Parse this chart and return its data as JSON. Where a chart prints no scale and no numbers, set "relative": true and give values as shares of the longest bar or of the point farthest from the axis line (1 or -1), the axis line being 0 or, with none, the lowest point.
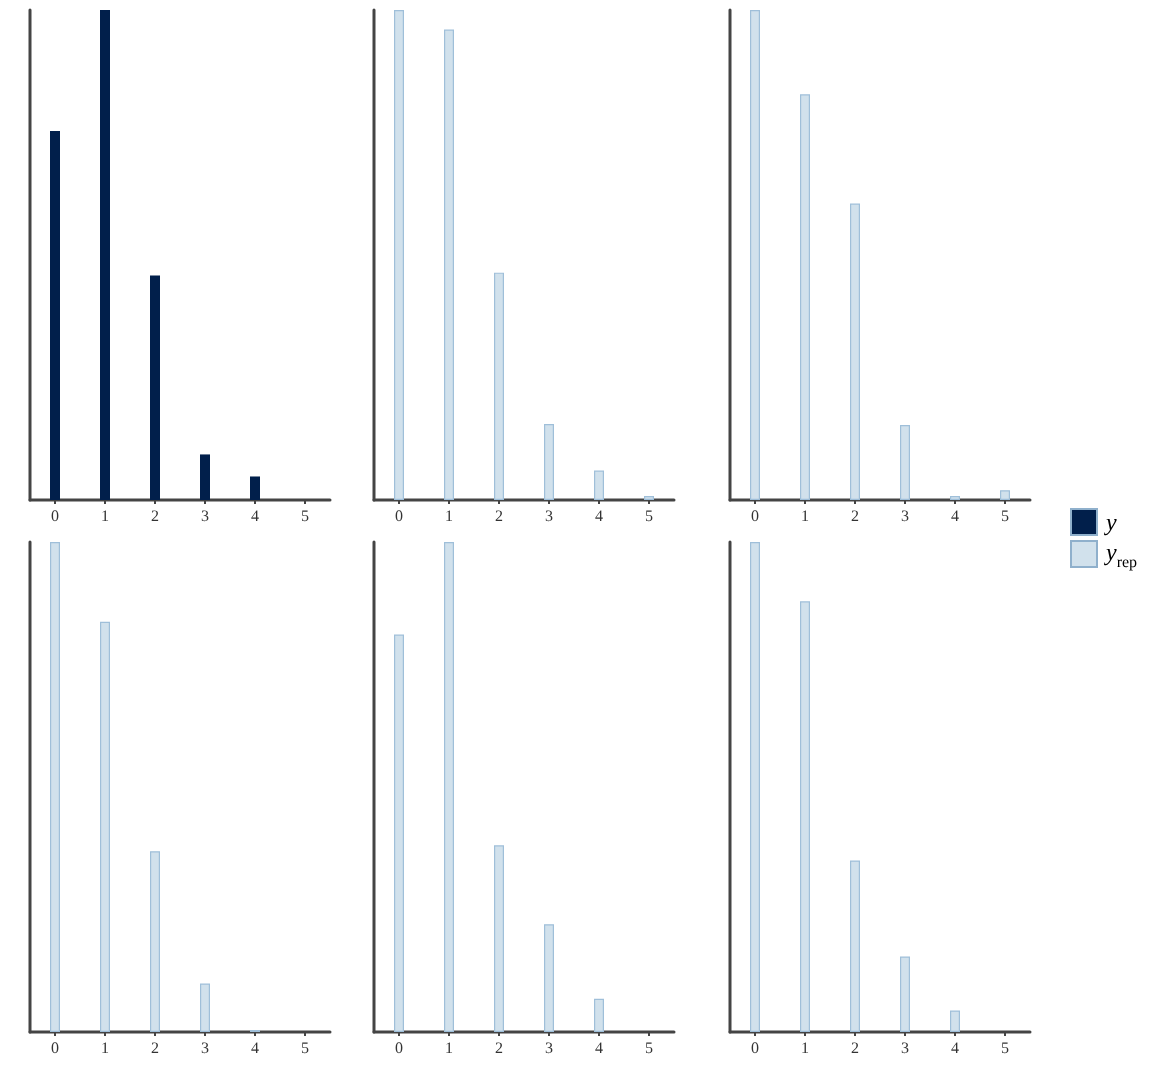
{
  "chart_data": [
    {
      "type": "bar",
      "relative": true,
      "categories": [
        "0",
        "1",
        "2",
        "3",
        "4",
        "5"
      ],
      "legend": "right",
      "grid": false,
      "series": [
        {
          "name": "y",
          "color": "#011f4b",
          "values": [
            0.753,
            1,
            0.458,
            0.093,
            0.048,
            null
          ]
        }
      ]
    },
    {
      "type": "bar",
      "relative": true,
      "categories": [
        "0",
        "1",
        "2",
        "3",
        "4",
        "5"
      ],
      "legend": "right",
      "grid": false,
      "series": [
        {
          "name": "y$_{rep}$",
          "color": "#d1e1ec",
          "values": [
            1,
            0.96,
            0.464,
            0.155,
            0.06,
            0.008
          ]
        }
      ]
    },
    {
      "type": "bar",
      "relative": true,
      "categories": [
        "0",
        "1",
        "2",
        "3",
        "4",
        "5"
      ],
      "legend": "right",
      "grid": false,
      "series": [
        {
          "name": "y$_{rep}$",
          "color": "#d1e1ec",
          "values": [
            1,
            0.828,
            0.605,
            0.153,
            0.008,
            0.02
          ]
        }
      ]
    },
    {
      "type": "bar",
      "relative": true,
      "categories": [
        "0",
        "1",
        "2",
        "3",
        "4",
        "5"
      ],
      "legend": "right",
      "grid": false,
      "series": [
        {
          "name": "y$_{rep}$",
          "color": "#d1e1ec",
          "values": [
            1,
            0.837,
            0.369,
            0.099,
            0.004,
            null
          ]
        }
      ]
    },
    {
      "type": "bar",
      "relative": true,
      "categories": [
        "0",
        "1",
        "2",
        "3",
        "4",
        "5"
      ],
      "legend": "right",
      "grid": false,
      "series": [
        {
          "name": "y$_{rep}$",
          "color": "#d1e1ec",
          "values": [
            0.811,
            1,
            0.381,
            0.22,
            0.068,
            null
          ]
        }
      ]
    },
    {
      "type": "bar",
      "relative": true,
      "categories": [
        "0",
        "1",
        "2",
        "3",
        "4",
        "5"
      ],
      "legend": "right",
      "grid": false,
      "series": [
        {
          "name": "y$_{rep}$",
          "color": "#d1e1ec",
          "values": [
            1,
            0.879,
            0.35,
            0.154,
            0.044,
            null
          ]
        }
      ]
    }
  ]
}
